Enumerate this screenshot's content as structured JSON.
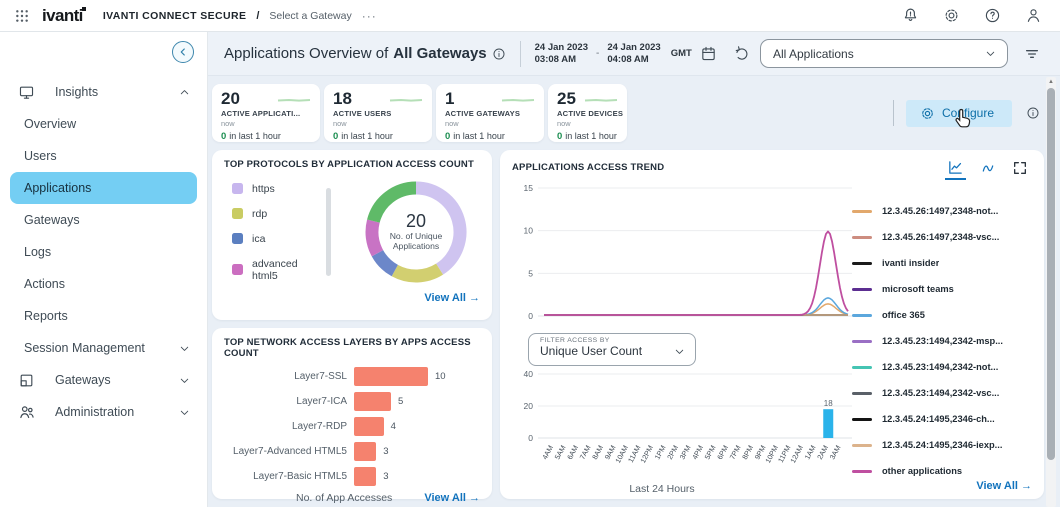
{
  "topbar": {
    "logo": "ivanti",
    "product": "IVANTI CONNECT SECURE",
    "separator": "/",
    "gateway_selector": "Select a Gateway",
    "more": "···"
  },
  "sidebar": {
    "items": [
      {
        "label": "Insights",
        "icon": "insights-monitor-icon",
        "level": "group",
        "chevron": "up"
      },
      {
        "label": "Overview",
        "level": "child"
      },
      {
        "label": "Users",
        "level": "child"
      },
      {
        "label": "Applications",
        "level": "child",
        "selected": true
      },
      {
        "label": "Gateways",
        "level": "child"
      },
      {
        "label": "Logs",
        "level": "child"
      },
      {
        "label": "Actions",
        "level": "child"
      },
      {
        "label": "Reports",
        "level": "child"
      },
      {
        "label": "Session Management",
        "level": "child",
        "chevron": "down"
      },
      {
        "label": "Gateways",
        "icon": "gateways-icon",
        "level": "group",
        "chevron": "down"
      },
      {
        "label": "Administration",
        "icon": "administration-icon",
        "level": "group",
        "chevron": "down"
      }
    ]
  },
  "header": {
    "title": "Applications Overview of",
    "title_scope": "All Gateways",
    "date_start": {
      "date": "24 Jan 2023",
      "time": "03:08 AM"
    },
    "date_separator": "-",
    "date_end": {
      "date": "24 Jan 2023",
      "time": "04:08 AM"
    },
    "timezone": "GMT",
    "application_filter": "All Applications"
  },
  "stats": {
    "cards": [
      {
        "value": "20",
        "label": "ACTIVE APPLICATI...",
        "period": "now",
        "delta": "0",
        "delta_text": "in last 1 hour"
      },
      {
        "value": "18",
        "label": "ACTIVE USERS",
        "period": "now",
        "delta": "0",
        "delta_text": "in last 1 hour"
      },
      {
        "value": "1",
        "label": "ACTIVE GATEWAYS",
        "period": "now",
        "delta": "0",
        "delta_text": "in last 1 hour"
      },
      {
        "value": "25",
        "label": "ACTIVE DEVICES",
        "period": "now",
        "delta": "0",
        "delta_text": "in last 1 hour"
      }
    ],
    "configure_label": "Configure"
  },
  "ui": {
    "view_all_arrow": "→",
    "accent_blue": "#1273bd",
    "selected_nav_bg": "#74cef3",
    "configure_bg": "#cde9f9"
  },
  "chart_data": [
    {
      "type": "pie",
      "variant": "donut",
      "title": "TOP PROTOCOLS BY APPLICATION ACCESS COUNT",
      "center_value": "20",
      "center_label": "No. of Unique Applications",
      "legend": [
        {
          "label": "https",
          "color": "#c7b6ee"
        },
        {
          "label": "rdp",
          "color": "#c9cc63"
        },
        {
          "label": "ica",
          "color": "#5b7fc0"
        },
        {
          "label": "advanced html5",
          "color": "#cb6ec0"
        }
      ],
      "segments": [
        {
          "label": "https",
          "value": 41,
          "color": "#cfc4f0"
        },
        {
          "label": "rdp",
          "value": 17,
          "color": "#d2cf70"
        },
        {
          "label": "ica",
          "value": 9,
          "color": "#6c87c9"
        },
        {
          "label": "advanced html5",
          "value": 12,
          "color": "#c873c4"
        },
        {
          "label": "",
          "value": 21,
          "color": "#5fba68"
        }
      ],
      "view_all": "View All"
    },
    {
      "type": "bar",
      "orientation": "horizontal",
      "title": "TOP NETWORK ACCESS LAYERS BY APPS ACCESS COUNT",
      "categories": [
        "Layer7-SSL",
        "Layer7-ICA",
        "Layer7-RDP",
        "Layer7-Advanced HTML5",
        "Layer7-Basic HTML5"
      ],
      "values": [
        10,
        5,
        4,
        3,
        3
      ],
      "xlim": [
        0,
        10
      ],
      "bar_color": "#f5826e",
      "xlabel": "No. of App Accesses",
      "view_all": "View All"
    },
    {
      "type": "line",
      "title": "APPLICATIONS ACCESS TREND",
      "x": [
        "4AM",
        "5AM",
        "6AM",
        "7AM",
        "8AM",
        "9AM",
        "10AM",
        "11AM",
        "12PM",
        "1PM",
        "2PM",
        "3PM",
        "4PM",
        "5PM",
        "6PM",
        "7PM",
        "8PM",
        "9PM",
        "10PM",
        "11PM",
        "12AM",
        "1AM",
        "2AM",
        "3AM"
      ],
      "ylim": [
        0,
        15
      ],
      "yticks": [
        0,
        5,
        10,
        15
      ],
      "grid": true,
      "legend_position": "right",
      "spike_x": "2AM",
      "series": [
        {
          "name": "12.3.45.26:1497,2348-not...",
          "color": "#e2a86c",
          "peak": 1.3
        },
        {
          "name": "12.3.45.26:1497,2348-vsc...",
          "color": "#cd8d80",
          "peak": 0
        },
        {
          "name": "ivanti insider",
          "color": "#1b1b1b",
          "peak": 0
        },
        {
          "name": "microsoft teams",
          "color": "#5c2e91",
          "peak": 0
        },
        {
          "name": "office 365",
          "color": "#5ba7dd",
          "peak": 2
        },
        {
          "name": "12.3.45.23:1494,2342-msp...",
          "color": "#9a6fc4",
          "peak": 0
        },
        {
          "name": "12.3.45.23:1494,2342-not...",
          "color": "#45c4b3",
          "peak": 0
        },
        {
          "name": "12.3.45.23:1494,2342-vsc...",
          "color": "#5a6068",
          "peak": 0
        },
        {
          "name": "12.3.45.24:1495,2346-ch...",
          "color": "#141414",
          "peak": 0
        },
        {
          "name": "12.3.45.24:1495,2346-iexp...",
          "color": "#dcb38c",
          "peak": 0
        },
        {
          "name": "other applications",
          "color": "#bf4fa0",
          "peak": 9.8
        }
      ],
      "view_all": "View All"
    },
    {
      "type": "bar",
      "orientation": "vertical",
      "filter_label": "FILTER ACCESS BY",
      "filter_value": "Unique User Count",
      "categories": [
        "4AM",
        "5AM",
        "6AM",
        "7AM",
        "8AM",
        "9AM",
        "10AM",
        "11AM",
        "12PM",
        "1PM",
        "2PM",
        "3PM",
        "4PM",
        "5PM",
        "6PM",
        "7PM",
        "8PM",
        "9PM",
        "10PM",
        "11PM",
        "12AM",
        "1AM",
        "2AM",
        "3AM"
      ],
      "values": [
        0,
        0,
        0,
        0,
        0,
        0,
        0,
        0,
        0,
        0,
        0,
        0,
        0,
        0,
        0,
        0,
        0,
        0,
        0,
        0,
        0,
        0,
        18,
        0
      ],
      "ylim": [
        0,
        40
      ],
      "yticks": [
        0,
        20,
        40
      ],
      "annotated_value": "18",
      "bar_color": "#2ab3ea",
      "xlabel": "Last 24 Hours"
    }
  ]
}
